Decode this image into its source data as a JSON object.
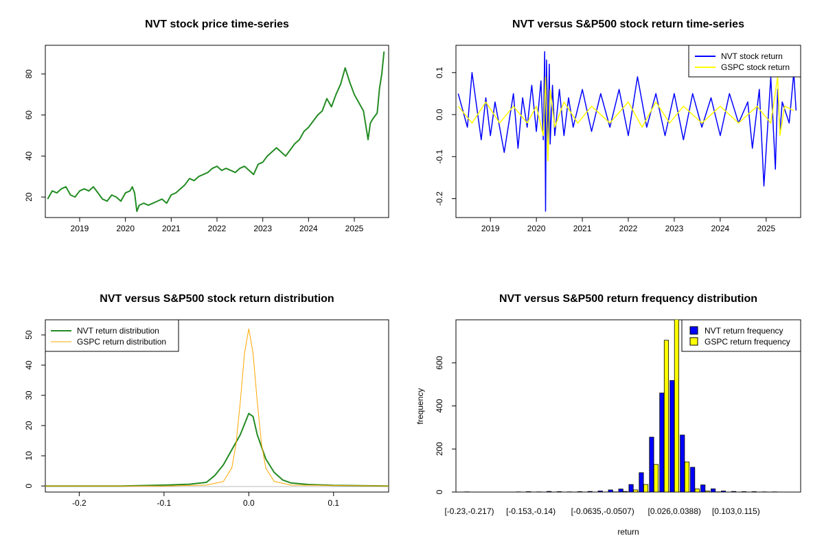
{
  "colors": {
    "nvt_price": "#228B22",
    "nvt_return": "#0000FF",
    "gspc_return": "#FFFF00",
    "nvt_density": "#228B22",
    "gspc_density": "#FFA500",
    "nvt_hist": "#0000FF",
    "gspc_hist": "#FFFF00"
  },
  "chart_data": [
    {
      "id": "price",
      "type": "line",
      "title": "NVT stock price time-series",
      "xlabel": "",
      "ylabel": "",
      "x_ticks": [
        "2019",
        "2020",
        "2021",
        "2022",
        "2023",
        "2024",
        "2025"
      ],
      "y_ticks": [
        "20",
        "40",
        "60",
        "80"
      ],
      "xlim": [
        2018.25,
        2025.75
      ],
      "ylim": [
        10,
        94
      ],
      "series": [
        {
          "x": [
            2018.3,
            2018.4,
            2018.5,
            2018.6,
            2018.7,
            2018.8,
            2018.9,
            2019.0,
            2019.1,
            2019.2,
            2019.3,
            2019.4,
            2019.5,
            2019.6,
            2019.7,
            2019.8,
            2019.9,
            2020.0,
            2020.1,
            2020.15,
            2020.2,
            2020.25,
            2020.3,
            2020.4,
            2020.5,
            2020.6,
            2020.7,
            2020.8,
            2020.9,
            2021.0,
            2021.1,
            2021.2,
            2021.3,
            2021.4,
            2021.5,
            2021.6,
            2021.7,
            2021.8,
            2021.9,
            2022.0,
            2022.1,
            2022.2,
            2022.3,
            2022.4,
            2022.5,
            2022.6,
            2022.7,
            2022.8,
            2022.9,
            2023.0,
            2023.1,
            2023.2,
            2023.3,
            2023.4,
            2023.5,
            2023.6,
            2023.7,
            2023.8,
            2023.9,
            2024.0,
            2024.1,
            2024.2,
            2024.3,
            2024.4,
            2024.5,
            2024.6,
            2024.7,
            2024.8,
            2024.9,
            2025.0,
            2025.1,
            2025.2,
            2025.25,
            2025.3,
            2025.35,
            2025.4,
            2025.5,
            2025.55,
            2025.6,
            2025.65
          ],
          "y": [
            19,
            23,
            22,
            24,
            25,
            21,
            20,
            23,
            24,
            23,
            25,
            22,
            19,
            18,
            21,
            20,
            18,
            22,
            23,
            25,
            22,
            13,
            16,
            17,
            16,
            17,
            18,
            19,
            17,
            21,
            22,
            24,
            26,
            29,
            28,
            30,
            31,
            32,
            34,
            35,
            33,
            34,
            33,
            32,
            34,
            35,
            33,
            31,
            36,
            37,
            40,
            42,
            44,
            42,
            40,
            43,
            46,
            48,
            52,
            54,
            57,
            60,
            62,
            68,
            64,
            70,
            75,
            83,
            76,
            70,
            66,
            62,
            55,
            48,
            56,
            58,
            61,
            73,
            80,
            91
          ]
        }
      ]
    },
    {
      "id": "returns",
      "type": "line",
      "title": "NVT versus S&P500 stock return time-series",
      "xlabel": "",
      "ylabel": "",
      "x_ticks": [
        "2019",
        "2020",
        "2021",
        "2022",
        "2023",
        "2024",
        "2025"
      ],
      "y_ticks": [
        "0.1",
        "0.0",
        "-0.1",
        "-0.2"
      ],
      "xlim": [
        2018.25,
        2025.75
      ],
      "ylim": [
        -0.245,
        0.165
      ],
      "legend": [
        "NVT stock return",
        "GSPC stock return"
      ],
      "legend_position": "top-right",
      "series": [
        {
          "name": "NVT stock return",
          "x": [
            2018.3,
            2018.5,
            2018.6,
            2018.8,
            2018.9,
            2019.0,
            2019.1,
            2019.3,
            2019.5,
            2019.6,
            2019.7,
            2019.8,
            2019.9,
            2020.0,
            2020.1,
            2020.15,
            2020.18,
            2020.2,
            2020.22,
            2020.25,
            2020.28,
            2020.3,
            2020.35,
            2020.4,
            2020.5,
            2020.6,
            2020.7,
            2020.8,
            2021.0,
            2021.2,
            2021.4,
            2021.6,
            2021.8,
            2022.0,
            2022.2,
            2022.4,
            2022.6,
            2022.8,
            2023.0,
            2023.2,
            2023.4,
            2023.6,
            2023.8,
            2024.0,
            2024.2,
            2024.4,
            2024.6,
            2024.7,
            2024.85,
            2024.95,
            2025.1,
            2025.2,
            2025.25,
            2025.3,
            2025.35,
            2025.5,
            2025.6,
            2025.65
          ],
          "y": [
            0.05,
            -0.03,
            0.1,
            -0.06,
            0.04,
            -0.05,
            0.03,
            -0.09,
            0.05,
            -0.08,
            0.04,
            -0.03,
            0.07,
            -0.04,
            0.08,
            -0.06,
            0.15,
            -0.23,
            0.13,
            -0.09,
            0.12,
            -0.07,
            0.07,
            -0.05,
            0.06,
            -0.05,
            0.04,
            -0.03,
            0.06,
            -0.04,
            0.05,
            -0.03,
            0.06,
            -0.05,
            0.09,
            -0.03,
            0.05,
            -0.05,
            0.05,
            -0.06,
            0.05,
            -0.03,
            0.04,
            -0.05,
            0.05,
            -0.02,
            0.03,
            -0.08,
            0.06,
            -0.17,
            0.09,
            -0.13,
            0.06,
            -0.04,
            0.03,
            -0.02,
            0.1,
            0.01
          ]
        },
        {
          "name": "GSPC stock return",
          "x": [
            2018.3,
            2018.6,
            2018.9,
            2019.2,
            2019.5,
            2019.8,
            2020.0,
            2020.15,
            2020.2,
            2020.25,
            2020.3,
            2020.4,
            2020.6,
            2020.9,
            2021.2,
            2021.6,
            2022.0,
            2022.3,
            2022.6,
            2022.9,
            2023.2,
            2023.6,
            2024.0,
            2024.4,
            2024.8,
            2025.1,
            2025.25,
            2025.3,
            2025.4,
            2025.6
          ],
          "y": [
            0.02,
            -0.02,
            0.03,
            -0.02,
            0.02,
            -0.02,
            0.02,
            -0.05,
            0.09,
            -0.11,
            0.06,
            -0.03,
            0.03,
            -0.02,
            0.02,
            -0.02,
            0.03,
            -0.03,
            0.03,
            -0.02,
            0.02,
            -0.02,
            0.02,
            -0.02,
            0.02,
            -0.02,
            0.09,
            -0.05,
            0.02,
            0.01
          ]
        }
      ]
    },
    {
      "id": "density",
      "type": "line",
      "title": "NVT versus S&P500 stock return distribution",
      "xlabel": "",
      "ylabel": "",
      "x_ticks": [
        "-0.2",
        "-0.1",
        "0.0",
        "0.1"
      ],
      "y_ticks": [
        "0",
        "10",
        "20",
        "30",
        "40",
        "50"
      ],
      "xlim": [
        -0.24,
        0.165
      ],
      "ylim": [
        -2,
        55
      ],
      "legend": [
        "NVT return distribution",
        "GSPC return distribution"
      ],
      "legend_position": "top-left",
      "series": [
        {
          "name": "NVT return distribution",
          "x": [
            -0.24,
            -0.15,
            -0.1,
            -0.07,
            -0.05,
            -0.04,
            -0.03,
            -0.02,
            -0.01,
            0.0,
            0.005,
            0.01,
            0.02,
            0.03,
            0.04,
            0.05,
            0.07,
            0.1,
            0.165
          ],
          "y": [
            0,
            0,
            0.3,
            0.6,
            1.2,
            3.5,
            7,
            12,
            17,
            24,
            23,
            17,
            9,
            4.5,
            2,
            1,
            0.5,
            0.2,
            0
          ]
        },
        {
          "name": "GSPC return distribution",
          "x": [
            -0.24,
            -0.1,
            -0.05,
            -0.03,
            -0.02,
            -0.015,
            -0.01,
            -0.005,
            0.0,
            0.005,
            0.01,
            0.015,
            0.02,
            0.03,
            0.05,
            0.165
          ],
          "y": [
            0,
            0,
            0.3,
            1.5,
            6,
            14,
            28,
            44,
            52,
            44,
            28,
            14,
            6,
            1.5,
            0.3,
            0
          ]
        }
      ]
    },
    {
      "id": "hist",
      "type": "bar",
      "title": "NVT versus S&P500 return frequency distribution",
      "xlabel": "return",
      "ylabel": "frequency",
      "x_ticks": [
        "[-0.23,-0.217)",
        "[-0.153,-0.14)",
        "[-0.0635,-0.0507)",
        "[0.026,0.0388)",
        "[0.103,0.115)"
      ],
      "y_ticks": [
        "0",
        "200",
        "400",
        "600"
      ],
      "ylim": [
        0,
        800
      ],
      "legend": [
        "NVT return frequency",
        "GSPC return frequency"
      ],
      "legend_position": "top-right",
      "series": [
        {
          "name": "NVT return frequency",
          "values": [
            1,
            0,
            0,
            0,
            0,
            1,
            2,
            1,
            3,
            2,
            1,
            2,
            3,
            5,
            10,
            14,
            35,
            90,
            255,
            460,
            518,
            265,
            115,
            33,
            15,
            5,
            3,
            2,
            2,
            1,
            1,
            0
          ]
        },
        {
          "name": "GSPC return frequency",
          "values": [
            0,
            0,
            0,
            0,
            0,
            0,
            0,
            0,
            0,
            0,
            0,
            0,
            0,
            0,
            1,
            3,
            10,
            35,
            128,
            705,
            890,
            140,
            15,
            5,
            1,
            0,
            0,
            0,
            0,
            0,
            0,
            0
          ]
        }
      ]
    }
  ]
}
